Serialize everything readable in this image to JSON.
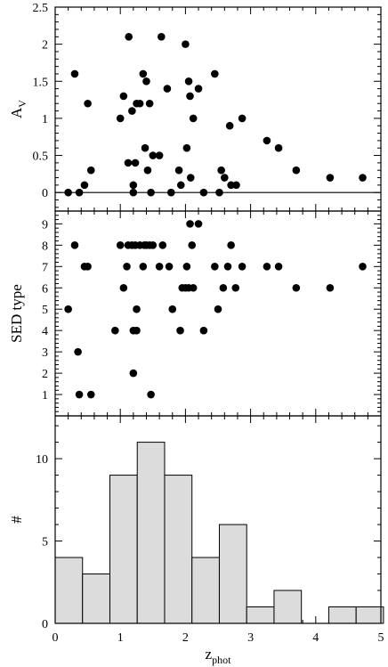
{
  "chart_data": [
    {
      "type": "scatter",
      "ylabel": "A",
      "ylabel_sub": "V",
      "xlim": [
        0,
        5
      ],
      "ylim": [
        -0.25,
        2.5
      ],
      "yticks": [
        "0",
        "0.5",
        "1",
        "1.5",
        "2",
        "2.5"
      ],
      "hline": 0,
      "points": [
        [
          0.2,
          0.0
        ],
        [
          0.3,
          1.6
        ],
        [
          0.37,
          0.0
        ],
        [
          0.45,
          0.1
        ],
        [
          0.5,
          1.2
        ],
        [
          0.55,
          0.3
        ],
        [
          1.0,
          1.0
        ],
        [
          1.05,
          1.3
        ],
        [
          1.12,
          0.4
        ],
        [
          1.13,
          2.1
        ],
        [
          1.18,
          1.1
        ],
        [
          1.2,
          0.1
        ],
        [
          1.2,
          0.0
        ],
        [
          1.23,
          0.4
        ],
        [
          1.25,
          1.2
        ],
        [
          1.3,
          1.2
        ],
        [
          1.35,
          1.6
        ],
        [
          1.38,
          0.6
        ],
        [
          1.4,
          1.5
        ],
        [
          1.42,
          0.3
        ],
        [
          1.45,
          1.2
        ],
        [
          1.47,
          0.0
        ],
        [
          1.5,
          0.5
        ],
        [
          1.6,
          0.5
        ],
        [
          1.63,
          2.1
        ],
        [
          1.72,
          1.4
        ],
        [
          1.78,
          0.0
        ],
        [
          1.9,
          0.3
        ],
        [
          1.93,
          0.1
        ],
        [
          2.0,
          2.0
        ],
        [
          2.02,
          0.6
        ],
        [
          2.05,
          1.5
        ],
        [
          2.07,
          1.3
        ],
        [
          2.08,
          0.2
        ],
        [
          2.12,
          1.0
        ],
        [
          2.2,
          1.4
        ],
        [
          2.28,
          0.0
        ],
        [
          2.45,
          1.6
        ],
        [
          2.52,
          0.0
        ],
        [
          2.55,
          0.3
        ],
        [
          2.6,
          0.2
        ],
        [
          2.68,
          0.9
        ],
        [
          2.7,
          0.1
        ],
        [
          2.78,
          0.1
        ],
        [
          2.87,
          1.0
        ],
        [
          3.25,
          0.7
        ],
        [
          3.43,
          0.6
        ],
        [
          3.7,
          0.3
        ],
        [
          4.22,
          0.2
        ],
        [
          4.72,
          0.2
        ]
      ]
    },
    {
      "type": "scatter",
      "ylabel": "SED type",
      "xlim": [
        0,
        5
      ],
      "ylim": [
        0,
        9.6
      ],
      "yticks": [
        "1",
        "2",
        "3",
        "4",
        "5",
        "6",
        "7",
        "8",
        "9"
      ],
      "points": [
        [
          0.2,
          5
        ],
        [
          0.3,
          8
        ],
        [
          0.35,
          3
        ],
        [
          0.37,
          1
        ],
        [
          0.45,
          7
        ],
        [
          0.5,
          7
        ],
        [
          0.55,
          1
        ],
        [
          0.92,
          4
        ],
        [
          1.0,
          8
        ],
        [
          1.05,
          6
        ],
        [
          1.1,
          7
        ],
        [
          1.12,
          8
        ],
        [
          1.18,
          8
        ],
        [
          1.2,
          2
        ],
        [
          1.2,
          4
        ],
        [
          1.23,
          8
        ],
        [
          1.25,
          5
        ],
        [
          1.25,
          4
        ],
        [
          1.3,
          8
        ],
        [
          1.35,
          7
        ],
        [
          1.37,
          8
        ],
        [
          1.4,
          8
        ],
        [
          1.45,
          8
        ],
        [
          1.47,
          1
        ],
        [
          1.5,
          8
        ],
        [
          1.6,
          7
        ],
        [
          1.65,
          8
        ],
        [
          1.75,
          7
        ],
        [
          1.8,
          5
        ],
        [
          1.92,
          4
        ],
        [
          1.95,
          6
        ],
        [
          2.0,
          6
        ],
        [
          2.02,
          7
        ],
        [
          2.05,
          6
        ],
        [
          2.07,
          9
        ],
        [
          2.1,
          8
        ],
        [
          2.12,
          6
        ],
        [
          2.2,
          9
        ],
        [
          2.28,
          4
        ],
        [
          2.45,
          7
        ],
        [
          2.5,
          5
        ],
        [
          2.58,
          6
        ],
        [
          2.65,
          7
        ],
        [
          2.7,
          8
        ],
        [
          2.77,
          6
        ],
        [
          2.87,
          7
        ],
        [
          3.25,
          7
        ],
        [
          3.43,
          7
        ],
        [
          3.7,
          6
        ],
        [
          4.22,
          6
        ],
        [
          4.72,
          7
        ]
      ]
    },
    {
      "type": "bar",
      "ylabel": "#",
      "xlabel": "z",
      "xlabel_sub": "phot",
      "xlim": [
        0,
        5
      ],
      "ylim": [
        0,
        12.6
      ],
      "yticks": [
        "0",
        "5",
        "10"
      ],
      "xticks": [
        "0",
        "1",
        "2",
        "3",
        "4",
        "5"
      ],
      "bin_width": 0.42,
      "bin_edges_start": 0,
      "values": [
        4,
        3,
        9,
        11,
        9,
        4,
        6,
        1,
        2,
        0,
        1,
        1
      ],
      "colors": {
        "bar_fill": "#dcdcdc",
        "bar_edge": "#000000"
      }
    }
  ]
}
